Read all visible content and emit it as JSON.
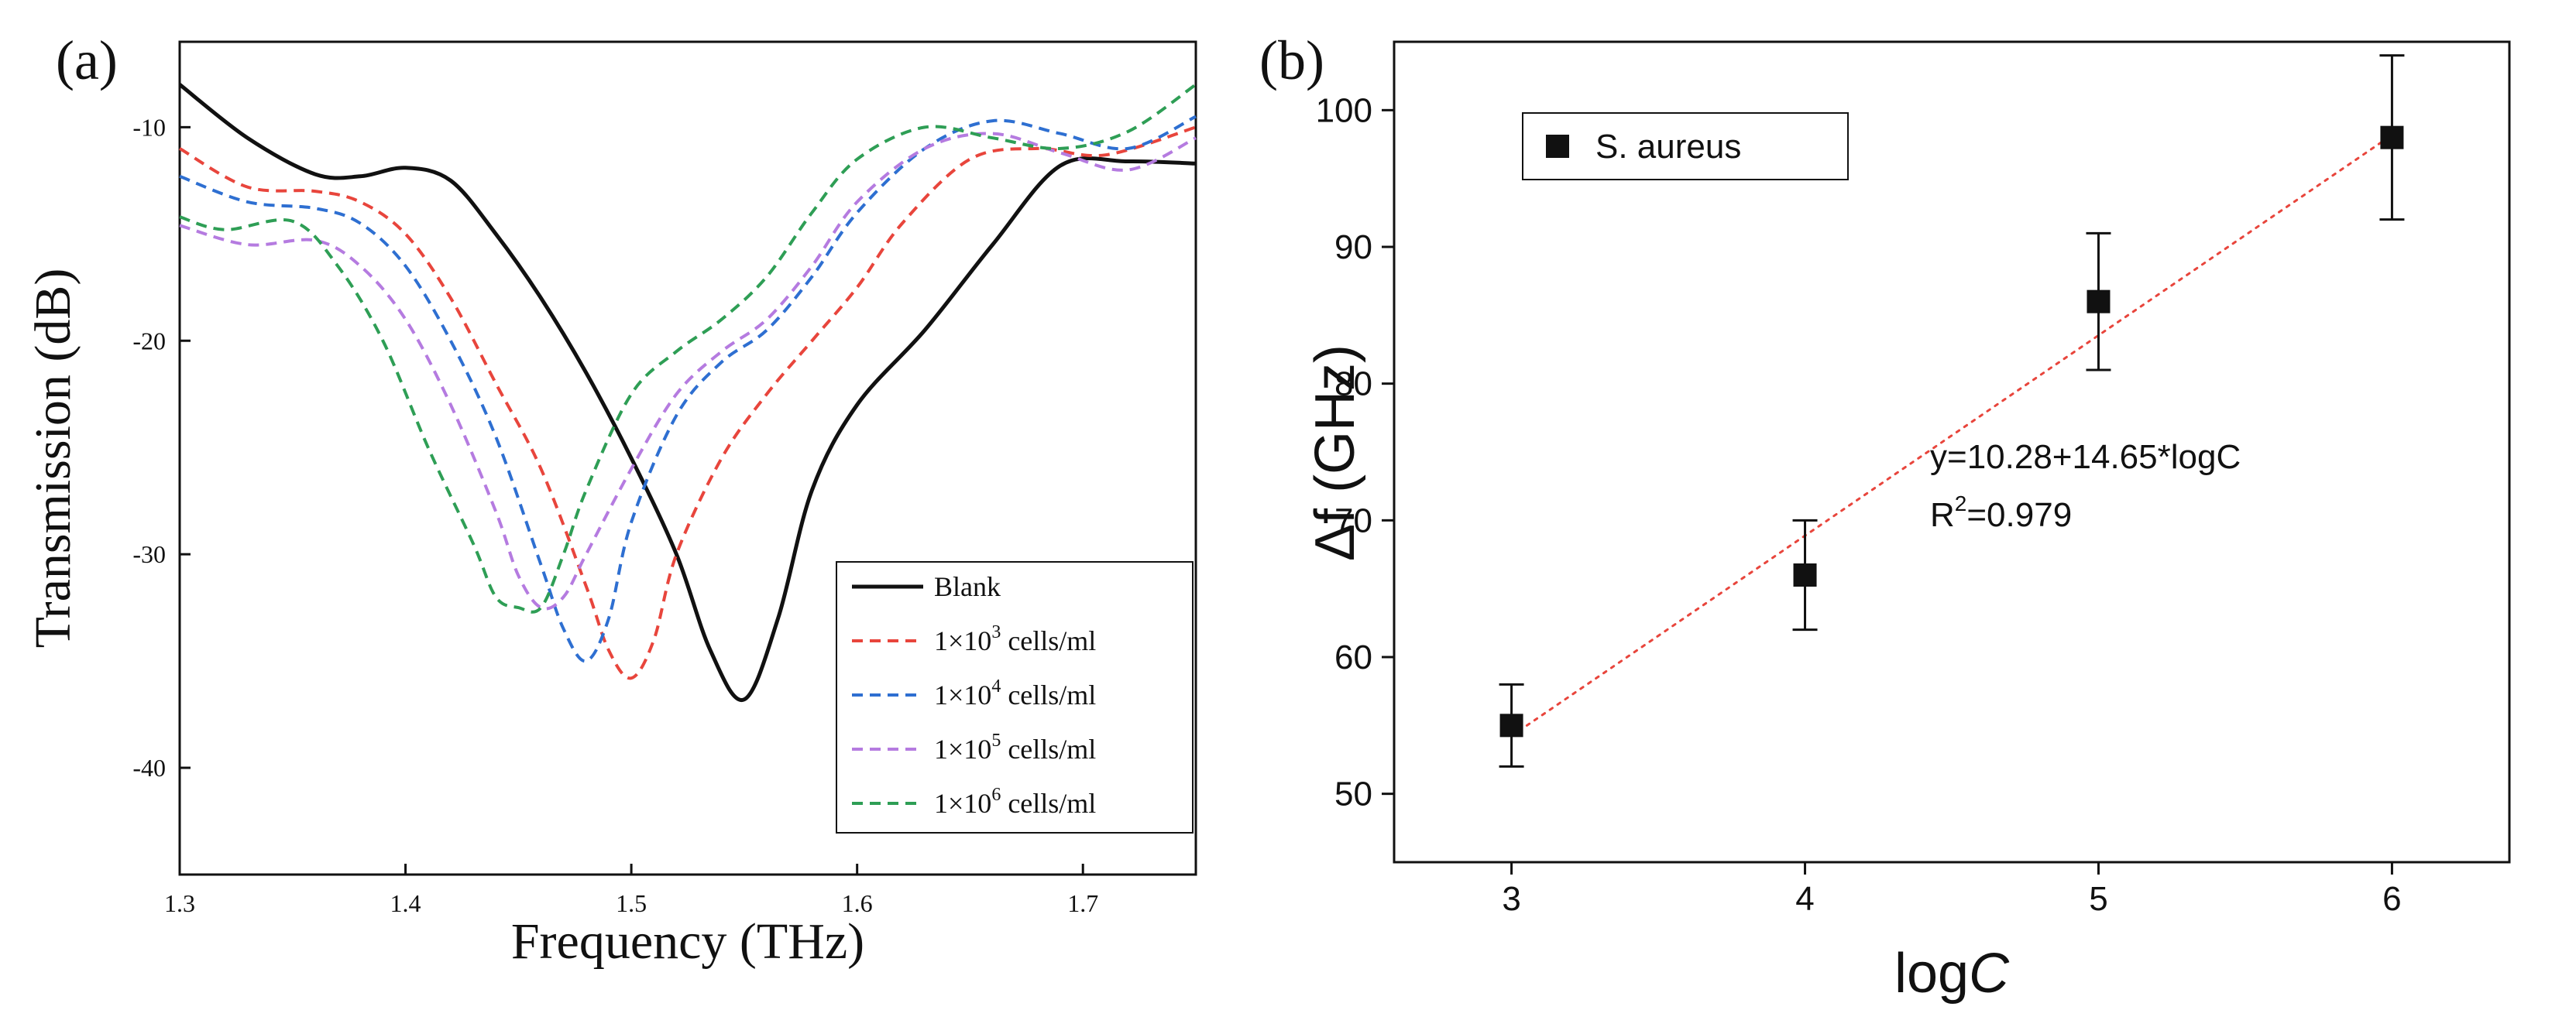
{
  "chart_data": [
    {
      "type": "line",
      "panel_label": "(a)",
      "xlabel": "Frequency (THz)",
      "ylabel": "Transmission (dB)",
      "xlim": [
        1.3,
        1.75
      ],
      "ylim": [
        -45,
        -6
      ],
      "x_ticks": [
        1.3,
        1.4,
        1.5,
        1.6,
        1.7
      ],
      "x_tick_labels": [
        "1.3",
        "1.4",
        "1.5",
        "1.6",
        "1.7"
      ],
      "y_ticks": [
        -10,
        -20,
        -30,
        -40
      ],
      "y_tick_labels": [
        "-10",
        "-20",
        "-30",
        "-40"
      ],
      "legend_position": "bottom-right",
      "series": [
        {
          "name": "Blank",
          "legend_main": "Blank",
          "legend_exp": "",
          "legend_suffix": "",
          "color": "#111111",
          "style": "solid",
          "x": [
            1.3,
            1.33,
            1.36,
            1.38,
            1.4,
            1.42,
            1.44,
            1.46,
            1.48,
            1.5,
            1.52,
            1.535,
            1.55,
            1.565,
            1.58,
            1.6,
            1.63,
            1.66,
            1.69,
            1.72,
            1.75
          ],
          "y": [
            -8.0,
            -10.5,
            -12.2,
            -12.3,
            -11.9,
            -12.5,
            -15.0,
            -18.0,
            -21.5,
            -25.5,
            -30.0,
            -34.5,
            -36.8,
            -33.0,
            -27.0,
            -23.0,
            -19.5,
            -15.5,
            -11.8,
            -11.6,
            -11.7
          ]
        },
        {
          "name": "1×10³ cells/ml",
          "legend_main": "1×10",
          "legend_exp": "3",
          "legend_suffix": " cells/ml",
          "color": "#e8453c",
          "style": "dashed",
          "x": [
            1.3,
            1.33,
            1.36,
            1.38,
            1.4,
            1.42,
            1.44,
            1.46,
            1.48,
            1.49,
            1.5,
            1.51,
            1.52,
            1.54,
            1.56,
            1.58,
            1.6,
            1.62,
            1.65,
            1.68,
            1.71,
            1.75
          ],
          "y": [
            -11.0,
            -12.8,
            -13.0,
            -13.5,
            -15.0,
            -18.0,
            -22.0,
            -26.0,
            -31.5,
            -34.5,
            -35.8,
            -34.0,
            -30.0,
            -25.5,
            -22.5,
            -20.0,
            -17.5,
            -14.5,
            -11.5,
            -11.0,
            -11.3,
            -10.0
          ]
        },
        {
          "name": "1×10⁴ cells/ml",
          "legend_main": "1×10",
          "legend_exp": "4",
          "legend_suffix": " cells/ml",
          "color": "#2e6fd1",
          "style": "dashed",
          "x": [
            1.3,
            1.33,
            1.36,
            1.38,
            1.4,
            1.42,
            1.44,
            1.46,
            1.47,
            1.48,
            1.49,
            1.5,
            1.52,
            1.54,
            1.56,
            1.58,
            1.6,
            1.63,
            1.66,
            1.69,
            1.72,
            1.75
          ],
          "y": [
            -12.3,
            -13.5,
            -13.8,
            -14.5,
            -16.5,
            -20.0,
            -24.5,
            -30.5,
            -33.5,
            -35.0,
            -33.0,
            -28.5,
            -23.5,
            -21.0,
            -19.5,
            -17.0,
            -14.0,
            -11.0,
            -9.7,
            -10.3,
            -11.0,
            -9.5
          ]
        },
        {
          "name": "1×10⁵ cells/ml",
          "legend_main": "1×10",
          "legend_exp": "5",
          "legend_suffix": " cells/ml",
          "color": "#b57be0",
          "style": "dashed",
          "x": [
            1.3,
            1.33,
            1.36,
            1.38,
            1.4,
            1.42,
            1.44,
            1.45,
            1.46,
            1.47,
            1.48,
            1.5,
            1.52,
            1.54,
            1.56,
            1.58,
            1.6,
            1.63,
            1.66,
            1.69,
            1.72,
            1.75
          ],
          "y": [
            -14.6,
            -15.5,
            -15.3,
            -16.5,
            -19.0,
            -23.0,
            -28.0,
            -31.0,
            -32.5,
            -32.0,
            -30.0,
            -26.0,
            -22.5,
            -20.5,
            -19.0,
            -16.5,
            -13.5,
            -11.0,
            -10.3,
            -11.2,
            -12.0,
            -10.5
          ]
        },
        {
          "name": "1×10⁶ cells/ml",
          "legend_main": "1×10",
          "legend_exp": "6",
          "legend_suffix": " cells/ml",
          "color": "#2e9e55",
          "style": "dashed",
          "x": [
            1.3,
            1.32,
            1.35,
            1.37,
            1.39,
            1.41,
            1.43,
            1.44,
            1.45,
            1.46,
            1.47,
            1.48,
            1.5,
            1.52,
            1.54,
            1.56,
            1.58,
            1.6,
            1.63,
            1.66,
            1.69,
            1.72,
            1.75
          ],
          "y": [
            -14.2,
            -14.8,
            -14.4,
            -16.5,
            -20.0,
            -25.0,
            -29.5,
            -32.0,
            -32.5,
            -32.5,
            -30.0,
            -27.0,
            -22.5,
            -20.5,
            -19.0,
            -17.0,
            -14.0,
            -11.5,
            -10.0,
            -10.5,
            -11.0,
            -10.2,
            -8.0
          ]
        }
      ]
    },
    {
      "type": "scatter",
      "panel_label": "(b)",
      "xlabel_main": "log",
      "xlabel_var": "C",
      "ylabel": "Δf (GHz)",
      "xlim": [
        2.6,
        6.4
      ],
      "ylim": [
        45,
        105
      ],
      "x_ticks": [
        3,
        4,
        5,
        6
      ],
      "x_tick_labels": [
        "3",
        "4",
        "5",
        "6"
      ],
      "y_ticks": [
        50,
        60,
        70,
        80,
        90,
        100
      ],
      "y_tick_labels": [
        "50",
        "60",
        "70",
        "80",
        "90",
        "100"
      ],
      "legend_position": "top-left",
      "series": [
        {
          "name": "S. aureus",
          "color": "#111111",
          "marker": "square",
          "x": [
            3,
            4,
            5,
            6
          ],
          "y": [
            55,
            66,
            86,
            98
          ],
          "error": [
            3,
            4,
            5,
            6
          ]
        }
      ],
      "fit": {
        "intercept": 10.28,
        "slope": 14.65,
        "x_range": [
          3,
          6
        ],
        "color": "#e8453c",
        "style": "dotted"
      },
      "annotations": {
        "equation": "y=10.28+14.65*logC",
        "r2_prefix": "R",
        "r2_exp": "2",
        "r2_value": "=0.979"
      }
    }
  ]
}
